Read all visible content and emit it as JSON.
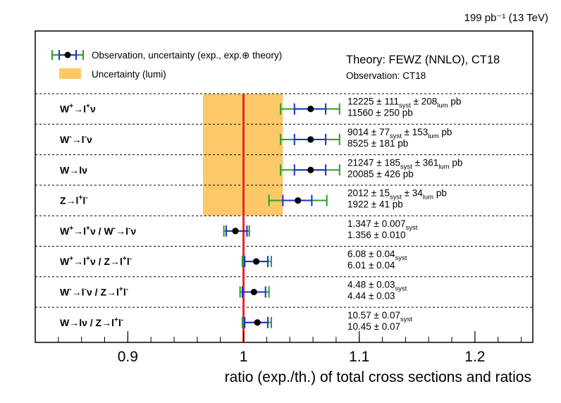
{
  "chart_data": {
    "type": "scatter",
    "top_label": "199 pb⁻¹ (13 TeV)",
    "theory_label": "Theory: FEWZ (NNLO), CT18",
    "observation_label": "Observation: CT18",
    "xlabel": "ratio (exp./th.) of total cross sections and ratios",
    "xlim": [
      0.82,
      1.25
    ],
    "x_ticks": [
      "0.9",
      "1",
      "1.1",
      "1.2"
    ],
    "x_tick_values": [
      0.9,
      1.0,
      1.1,
      1.2
    ],
    "reference_value": 1.0,
    "lumi_band": [
      0.965,
      1.034
    ],
    "legend": {
      "observation": "Observation, uncertainty (exp., exp.⊕ theory)",
      "lumi": "Uncertainty (lumi)"
    },
    "colors": {
      "point": "#000000",
      "exp_error": "#1f2fd1",
      "total_error": "#2a9e2a",
      "lumi_band": "#fdc867",
      "reference_line": "#e8262a"
    },
    "rows": [
      {
        "label": "W⁺→l⁺ν",
        "value": 1.058,
        "exp_err": [
          1.044,
          1.071
        ],
        "tot_err": [
          1.032,
          1.083
        ],
        "measured": {
          "val": "12225",
          "syst": "111",
          "lumi": "208",
          "unit": "pb"
        },
        "theory": "11560 ± 250 pb"
      },
      {
        "label": "W⁻→l⁻ν",
        "value": 1.058,
        "exp_err": [
          1.044,
          1.071
        ],
        "tot_err": [
          1.032,
          1.083
        ],
        "measured": {
          "val": "9014",
          "syst": "77",
          "lumi": "153",
          "unit": "pb"
        },
        "theory": "8525 ± 181 pb"
      },
      {
        "label": "W→lν",
        "value": 1.058,
        "exp_err": [
          1.044,
          1.071
        ],
        "tot_err": [
          1.032,
          1.083
        ],
        "measured": {
          "val": "21247",
          "syst": "185",
          "lumi": "361",
          "unit": "pb"
        },
        "theory": "20085 ± 426 pb"
      },
      {
        "label": "Z→l⁺l⁻",
        "value": 1.047,
        "exp_err": [
          1.034,
          1.059
        ],
        "tot_err": [
          1.022,
          1.072
        ],
        "measured": {
          "val": "2012",
          "syst": "15",
          "lumi": "34",
          "unit": "pb"
        },
        "theory": "1922 ± 41 pb"
      },
      {
        "label": "W⁺→l⁺ν / W⁻→l⁻ν",
        "value": 0.993,
        "exp_err": [
          0.985,
          1.003
        ],
        "tot_err": [
          0.983,
          1.005
        ],
        "measured": {
          "val": "1.347",
          "syst": "0.007"
        },
        "theory": "1.356 ± 0.010"
      },
      {
        "label": "W⁺→l⁺ν / Z→l⁺l⁻",
        "value": 1.011,
        "exp_err": [
          1.001,
          1.021
        ],
        "tot_err": [
          0.999,
          1.024
        ],
        "measured": {
          "val": "6.08",
          "syst": "0.04"
        },
        "theory": "6.01 ± 0.04"
      },
      {
        "label": "W⁻→l⁻ν / Z→l⁺l⁻",
        "value": 1.009,
        "exp_err": [
          0.999,
          1.019
        ],
        "tot_err": [
          0.997,
          1.022
        ],
        "measured": {
          "val": "4.48",
          "syst": "0.03"
        },
        "theory": "4.44 ± 0.03"
      },
      {
        "label": "W→lν / Z→l⁺l⁻",
        "value": 1.012,
        "exp_err": [
          1.001,
          1.021
        ],
        "tot_err": [
          0.999,
          1.024
        ],
        "measured": {
          "val": "10.57",
          "syst": "0.07"
        },
        "theory": "10.45 ± 0.07"
      }
    ]
  }
}
